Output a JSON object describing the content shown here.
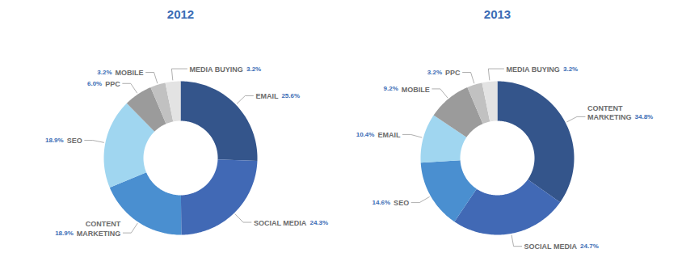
{
  "chart_data": [
    {
      "type": "donut",
      "title": "2012",
      "categories": [
        "EMAIL",
        "SOCIAL MEDIA",
        "CONTENT\nMARKETING",
        "SEO",
        "PPC",
        "MOBILE",
        "MEDIA BUYING"
      ],
      "values": [
        25.6,
        24.3,
        18.9,
        18.9,
        6.0,
        3.2,
        3.2
      ],
      "value_labels": [
        "25.6%",
        "24.3%",
        "18.9%",
        "18.9%",
        "6.0%",
        "3.2%",
        "3.2%"
      ],
      "colors": [
        "#34558b",
        "#4169b5",
        "#4a8fd0",
        "#a0d6f0",
        "#9b9b9b",
        "#c1c1c1",
        "#e3e3e3"
      ],
      "data_labels": true,
      "tick_labels": false
    },
    {
      "type": "donut",
      "title": "2013",
      "categories": [
        "CONTENT\nMARKETING",
        "SOCIAL MEDIA",
        "SEO",
        "EMAIL",
        "MOBILE",
        "PPC",
        "MEDIA BUYING"
      ],
      "values": [
        34.8,
        24.7,
        14.6,
        10.4,
        9.2,
        3.2,
        3.2
      ],
      "value_labels": [
        "34.8%",
        "24.7%",
        "14.6%",
        "10.4%",
        "9.2%",
        "3.2%",
        "3.2%"
      ],
      "colors": [
        "#34558b",
        "#4169b5",
        "#4a8fd0",
        "#a0d6f0",
        "#9b9b9b",
        "#c1c1c1",
        "#e3e3e3"
      ],
      "data_labels": true,
      "tick_labels": false
    }
  ]
}
